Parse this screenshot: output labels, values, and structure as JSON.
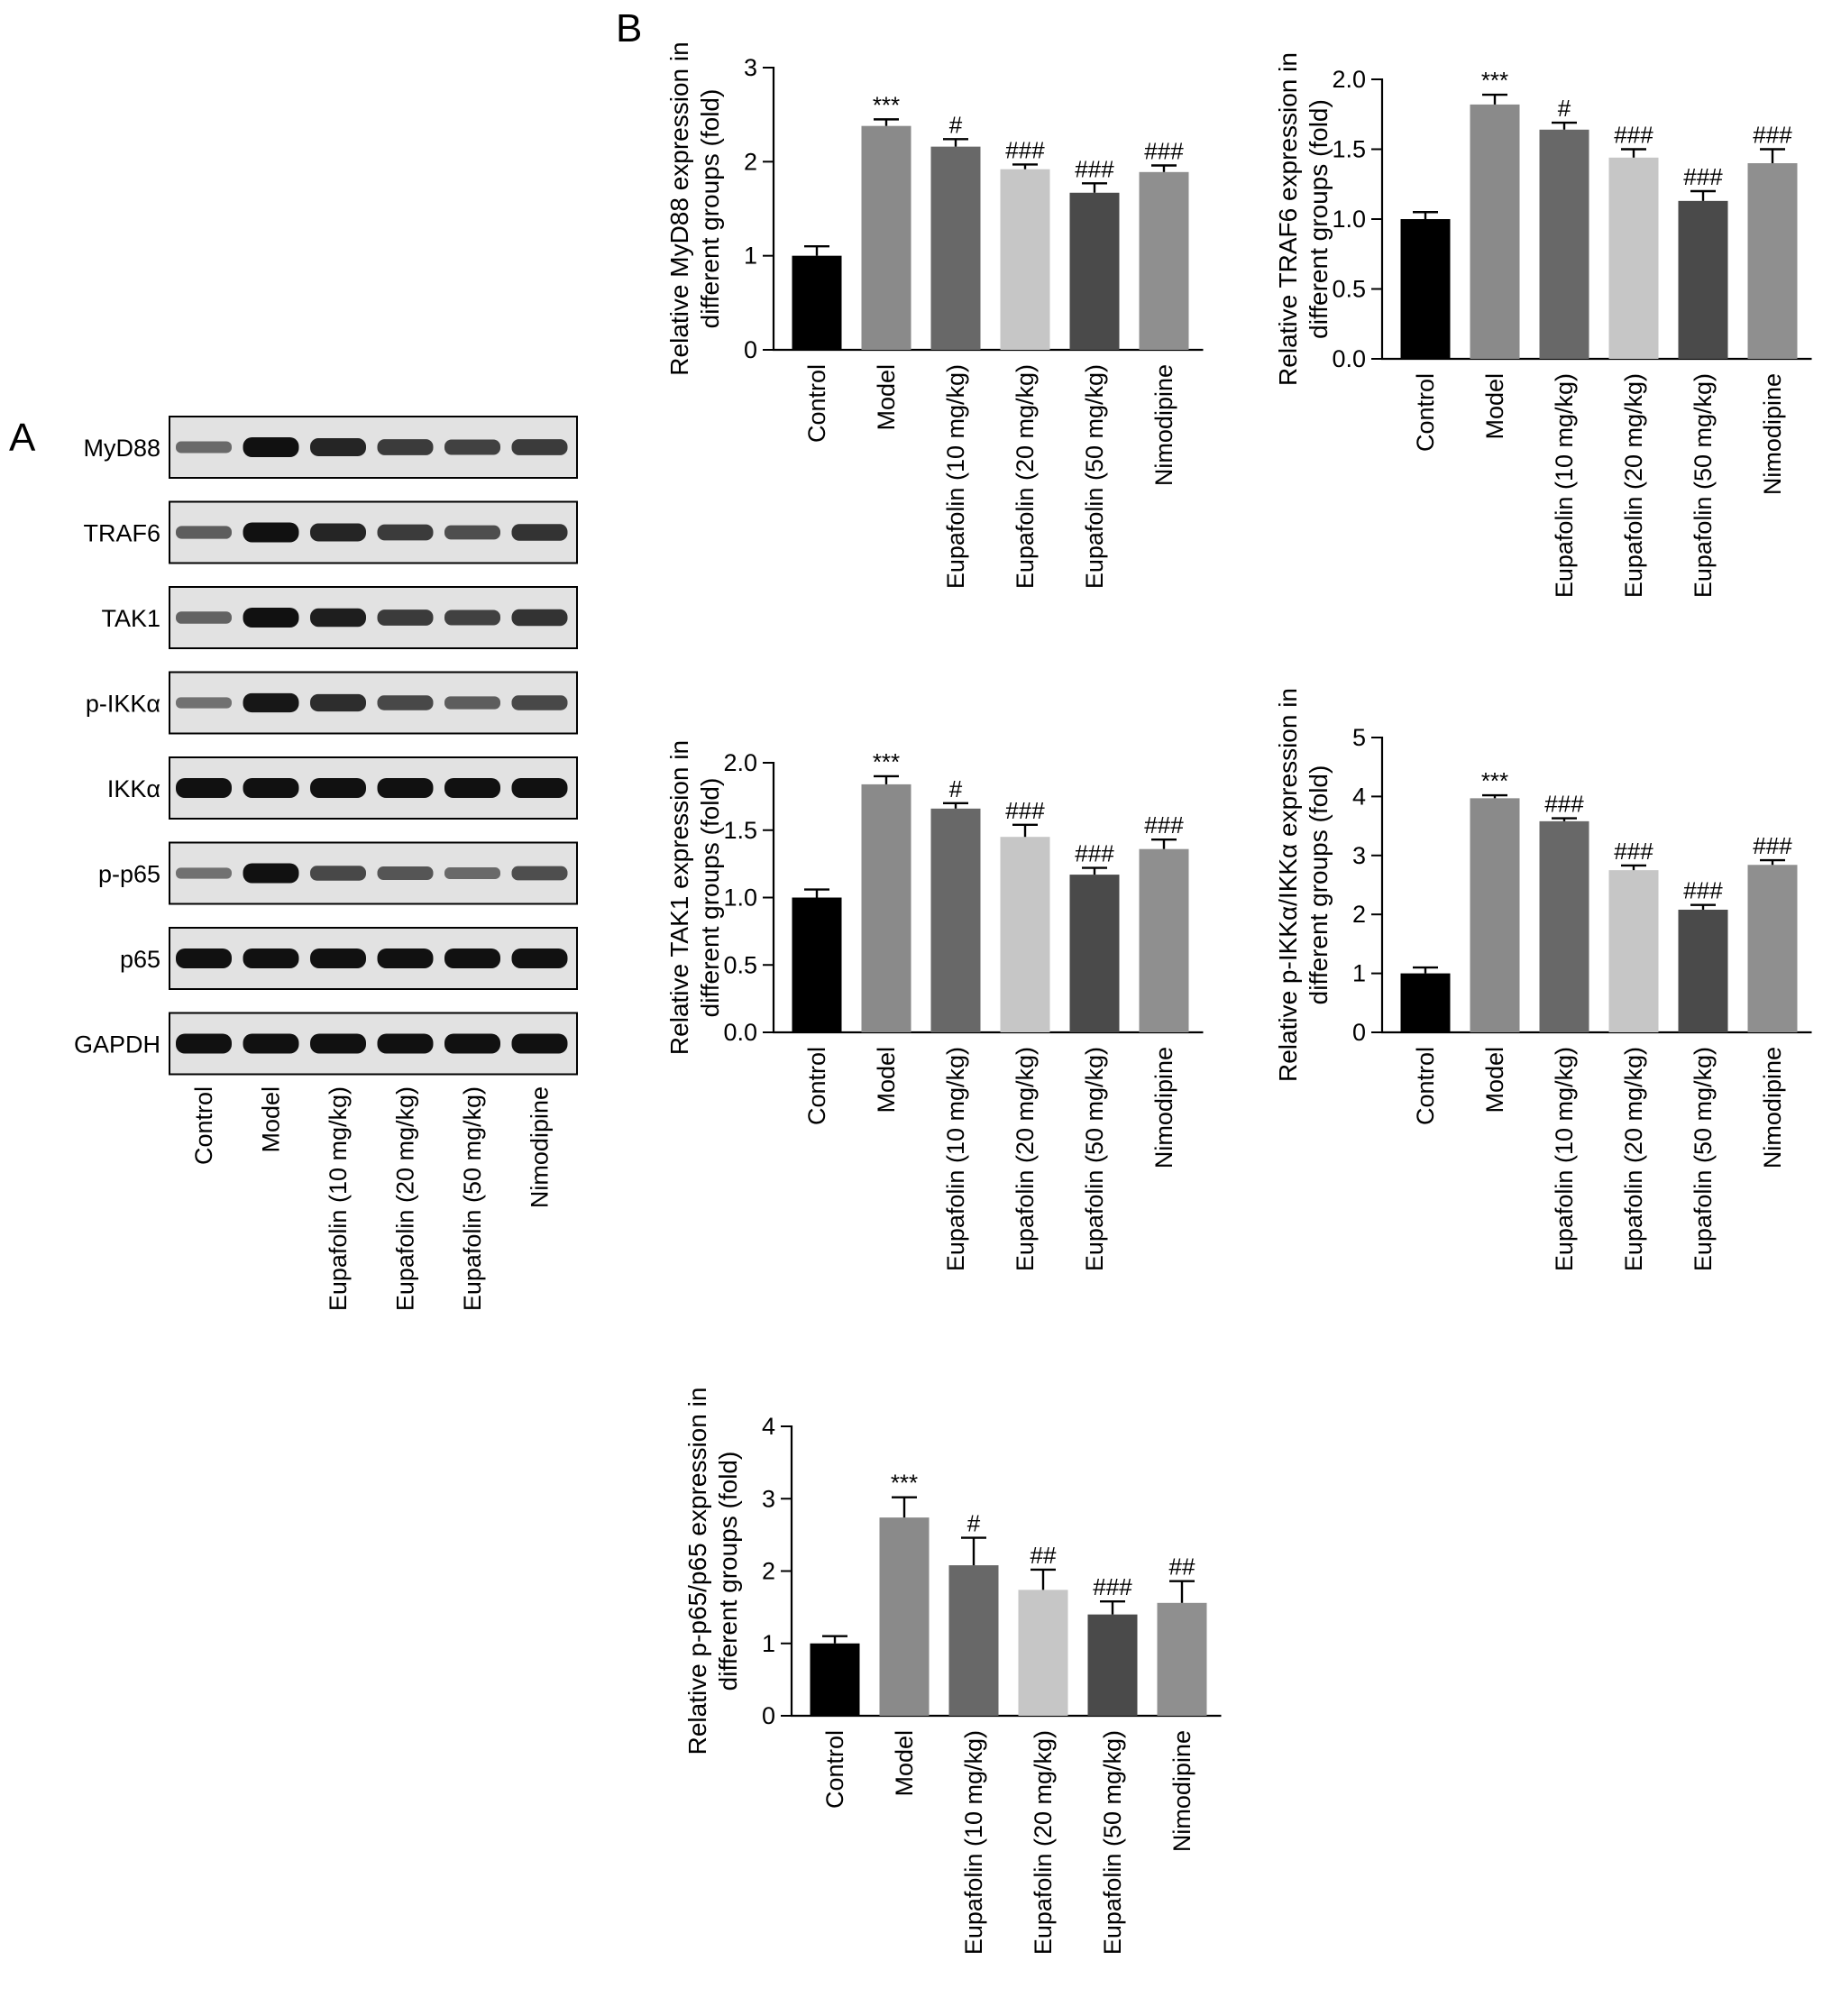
{
  "panel_labels": {
    "a": "A",
    "b": "B"
  },
  "western_blot": {
    "bands": [
      "MyD88",
      "TRAF6",
      "TAK1",
      "p-IKKα",
      "IKKα",
      "p-p65",
      "p65",
      "GAPDH"
    ],
    "lanes": [
      "Control",
      "Model",
      "Eupafolin (10 mg/kg)",
      "Eupafolin (20 mg/kg)",
      "Eupafolin (50 mg/kg)",
      "Nimodipine"
    ],
    "relative_intensity": [
      [
        0.35,
        1.0,
        0.85,
        0.7,
        0.65,
        0.7
      ],
      [
        0.45,
        1.0,
        0.85,
        0.7,
        0.55,
        0.75
      ],
      [
        0.4,
        1.0,
        0.9,
        0.7,
        0.65,
        0.75
      ],
      [
        0.3,
        0.95,
        0.8,
        0.6,
        0.45,
        0.6
      ],
      [
        1.0,
        1.0,
        1.0,
        1.0,
        1.0,
        1.0
      ],
      [
        0.3,
        1.0,
        0.6,
        0.5,
        0.35,
        0.55
      ],
      [
        1.0,
        1.0,
        1.0,
        1.0,
        1.0,
        1.0
      ],
      [
        1.0,
        1.0,
        1.0,
        1.0,
        1.0,
        1.0
      ]
    ]
  },
  "colors": {
    "bars": [
      "#000000",
      "#8a8a8a",
      "#686868",
      "#c6c6c6",
      "#4a4a4a",
      "#8f8f8f"
    ],
    "band": "#111111",
    "blot_background": "#e2e2e2"
  },
  "chart_data": [
    {
      "type": "bar",
      "categories": [
        "Control",
        "Model",
        "Eupafolin (10 mg/kg)",
        "Eupafolin (20 mg/kg)",
        "Eupafolin (50 mg/kg)",
        "Nimodipine"
      ],
      "values": [
        1.0,
        2.38,
        2.16,
        1.92,
        1.67,
        1.89
      ],
      "errors": [
        0.1,
        0.07,
        0.08,
        0.05,
        0.1,
        0.07
      ],
      "annotations": [
        "",
        "***",
        "#",
        "###",
        "###",
        "###"
      ],
      "ylabel": [
        "Relative MyD88 expression in",
        "different groups (fold)"
      ],
      "ylim": [
        0,
        3
      ],
      "yticks": [
        0,
        1,
        2,
        3
      ],
      "ytick_labels": [
        "0",
        "1",
        "2",
        "3"
      ]
    },
    {
      "type": "bar",
      "categories": [
        "Control",
        "Model",
        "Eupafolin (10 mg/kg)",
        "Eupafolin (20 mg/kg)",
        "Eupafolin (50 mg/kg)",
        "Nimodipine"
      ],
      "values": [
        1.0,
        1.82,
        1.64,
        1.44,
        1.13,
        1.4
      ],
      "errors": [
        0.05,
        0.07,
        0.05,
        0.06,
        0.07,
        0.1
      ],
      "annotations": [
        "",
        "***",
        "#",
        "###",
        "###",
        "###"
      ],
      "ylabel": [
        "Relative TRAF6 expression in",
        "different groups (fold)"
      ],
      "ylim": [
        0,
        2
      ],
      "yticks": [
        0,
        0.5,
        1,
        1.5,
        2
      ],
      "ytick_labels": [
        "0.0",
        "0.5",
        "1.0",
        "1.5",
        "2.0"
      ]
    },
    {
      "type": "bar",
      "categories": [
        "Control",
        "Model",
        "Eupafolin (10 mg/kg)",
        "Eupafolin (20 mg/kg)",
        "Eupafolin (50 mg/kg)",
        "Nimodipine"
      ],
      "values": [
        1.0,
        1.84,
        1.66,
        1.45,
        1.17,
        1.36
      ],
      "errors": [
        0.06,
        0.06,
        0.04,
        0.09,
        0.05,
        0.07
      ],
      "annotations": [
        "",
        "***",
        "#",
        "###",
        "###",
        "###"
      ],
      "ylabel": [
        "Relative TAK1 expression in",
        "different groups (fold)"
      ],
      "ylim": [
        0,
        2
      ],
      "yticks": [
        0,
        0.5,
        1,
        1.5,
        2
      ],
      "ytick_labels": [
        "0.0",
        "0.5",
        "1.0",
        "1.5",
        "2.0"
      ]
    },
    {
      "type": "bar",
      "categories": [
        "Control",
        "Model",
        "Eupafolin (10 mg/kg)",
        "Eupafolin (20 mg/kg)",
        "Eupafolin (50 mg/kg)",
        "Nimodipine"
      ],
      "values": [
        1.0,
        3.97,
        3.58,
        2.75,
        2.08,
        2.84
      ],
      "errors": [
        0.1,
        0.05,
        0.05,
        0.08,
        0.08,
        0.08
      ],
      "annotations": [
        "",
        "***",
        "###",
        "###",
        "###",
        "###"
      ],
      "ylabel": [
        "Relative p-IKKα/IKKα expression in",
        "different groups (fold)"
      ],
      "ylim": [
        0,
        5
      ],
      "yticks": [
        0,
        1,
        2,
        3,
        4,
        5
      ],
      "ytick_labels": [
        "0",
        "1",
        "2",
        "3",
        "4",
        "5"
      ]
    },
    {
      "type": "bar",
      "categories": [
        "Control",
        "Model",
        "Eupafolin (10 mg/kg)",
        "Eupafolin (20 mg/kg)",
        "Eupafolin (50 mg/kg)",
        "Nimodipine"
      ],
      "values": [
        1.0,
        2.74,
        2.08,
        1.74,
        1.4,
        1.56
      ],
      "errors": [
        0.1,
        0.28,
        0.38,
        0.28,
        0.18,
        0.3
      ],
      "annotations": [
        "",
        "***",
        "#",
        "##",
        "###",
        "##"
      ],
      "ylabel": [
        "Relative p-p65/p65 expression in",
        "different groups (fold)"
      ],
      "ylim": [
        0,
        4
      ],
      "yticks": [
        0,
        1,
        2,
        3,
        4
      ],
      "ytick_labels": [
        "0",
        "1",
        "2",
        "3",
        "4"
      ]
    }
  ]
}
